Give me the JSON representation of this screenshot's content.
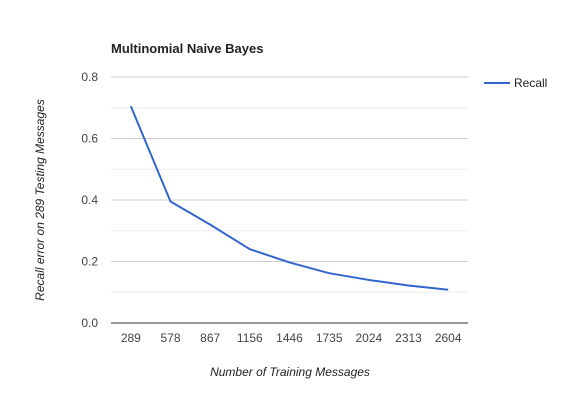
{
  "chart_data": {
    "type": "line",
    "title": "Multinomial Naive Bayes",
    "xlabel": "Number of Training Messages",
    "ylabel": "Recall error on  289 Testing Messages",
    "categories": [
      "289",
      "578",
      "867",
      "1156",
      "1446",
      "1735",
      "2024",
      "2313",
      "2604"
    ],
    "series": [
      {
        "name": "Recall",
        "color": "#3366cc",
        "values": [
          0.705,
          0.395,
          0.32,
          0.24,
          0.197,
          0.162,
          0.14,
          0.122,
          0.108
        ]
      }
    ],
    "ylim": [
      0,
      0.8
    ],
    "yticks": [
      "0.0",
      "0.2",
      "0.4",
      "0.6",
      "0.8"
    ],
    "grid": true,
    "legend_position": "right"
  }
}
